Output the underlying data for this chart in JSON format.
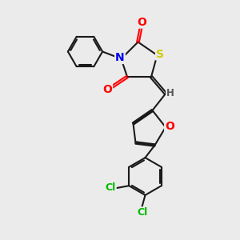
{
  "background_color": "#ebebeb",
  "bond_color": "#1a1a1a",
  "atom_colors": {
    "O": "#ff0000",
    "N": "#0000ee",
    "S": "#cccc00",
    "Cl": "#00bb00",
    "H": "#555555",
    "C": "#1a1a1a"
  },
  "figsize": [
    3.0,
    3.0
  ],
  "dpi": 100,
  "xlim": [
    0,
    10
  ],
  "ylim": [
    0,
    10
  ]
}
